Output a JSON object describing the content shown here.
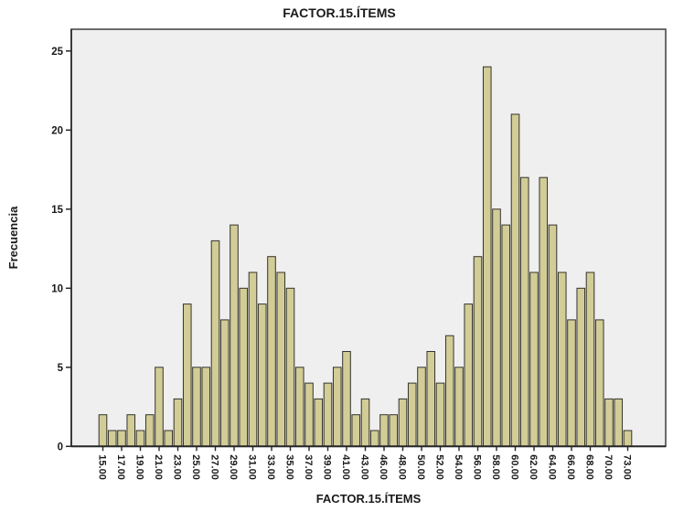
{
  "page": {
    "title": "FACTOR.15.ÍTEMS"
  },
  "chart_data": {
    "type": "bar",
    "title": "FACTOR.15.ÍTEMS",
    "xlabel": "FACTOR.15.ÍTEMS",
    "ylabel": "Frecuencia",
    "legend": "none",
    "grid": "off",
    "ylim": [
      0,
      26.4
    ],
    "y_ticks": [
      0,
      5,
      10,
      15,
      20,
      25
    ],
    "x_tick_rule": "label every other category",
    "categories": [
      "15.00",
      "16.00",
      "17.00",
      "18.00",
      "19.00",
      "20.00",
      "21.00",
      "22.00",
      "23.00",
      "24.00",
      "25.00",
      "26.00",
      "27.00",
      "28.00",
      "29.00",
      "30.00",
      "31.00",
      "32.00",
      "33.00",
      "34.00",
      "35.00",
      "36.00",
      "37.00",
      "38.00",
      "39.00",
      "40.00",
      "41.00",
      "42.00",
      "43.00",
      "44.00",
      "46.00",
      "47.00",
      "48.00",
      "49.00",
      "50.00",
      "51.00",
      "52.00",
      "53.00",
      "54.00",
      "55.00",
      "56.00",
      "57.00",
      "58.00",
      "59.00",
      "60.00",
      "61.00",
      "62.00",
      "63.00",
      "64.00",
      "65.00",
      "66.00",
      "67.00",
      "68.00",
      "69.00",
      "70.00",
      "71.00",
      "73.00"
    ],
    "values": [
      2,
      1,
      1,
      2,
      1,
      2,
      5,
      1,
      3,
      9,
      5,
      5,
      13,
      8,
      14,
      10,
      11,
      9,
      12,
      11,
      10,
      5,
      4,
      3,
      4,
      5,
      6,
      2,
      3,
      1,
      2,
      2,
      3,
      4,
      5,
      6,
      4,
      7,
      5,
      9,
      12,
      24,
      15,
      14,
      21,
      17,
      11,
      17,
      14,
      11,
      8,
      10,
      11,
      8,
      3,
      3,
      1
    ],
    "colors": {
      "bar_fill": "#d2cc96",
      "bar_stroke": "#33332e",
      "plot_bg": "#f0efef",
      "frame_stroke": "#4a4a4a",
      "axis_stroke": "#262626"
    }
  }
}
